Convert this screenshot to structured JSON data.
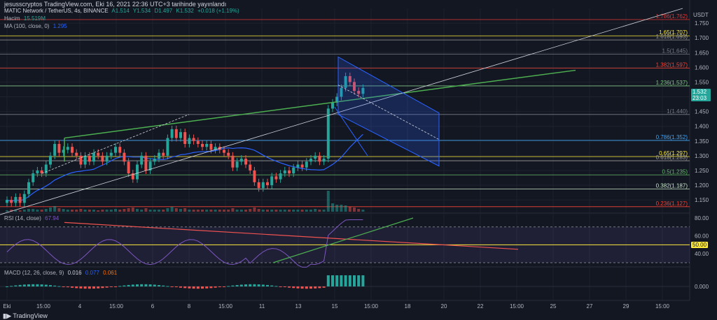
{
  "header": {
    "text": "jesusscryptos TradingView.com, Eki 16, 2021 22:36 UTC+3 tarihinde yayınlandı"
  },
  "symbol_legend": {
    "name": "MATIC Network / TetherUS, 4s, BINANCE",
    "open": "A1.514",
    "high": "Y1.534",
    "low": "D1.497",
    "close": "K1.532",
    "change": "+0.018 (+1.19%)"
  },
  "volume_legend": {
    "label": "Hacim",
    "value": "15.519M"
  },
  "ma_legend": {
    "label": "MA (100, close, 0)",
    "value": "1.295"
  },
  "rsi_legend": {
    "label": "RSI (14, close)",
    "value": "67.94"
  },
  "macd_legend": {
    "label": "MACD (12, 26, close, 9)",
    "v1": "0.016",
    "v2": "0.077",
    "v3": "0.061"
  },
  "currency": "USDT",
  "price_axis": [
    "1.750",
    "1.700",
    "1.650",
    "1.600",
    "1.550",
    "1.500",
    "1.450",
    "1.400",
    "1.350",
    "1.300",
    "1.250",
    "1.200",
    "1.150"
  ],
  "current_price": {
    "value": "1.532",
    "countdown": "23:03"
  },
  "fib_levels": [
    {
      "label": "1.786(1.762)",
      "price": 1.762,
      "color": "#e53935"
    },
    {
      "label": "1.65(1.707)",
      "price": 1.707,
      "color": "#ffeb3b"
    },
    {
      "label": "1.618(1.693)",
      "price": 1.693,
      "color": "#9e9e9e"
    },
    {
      "label": "1.5(1.645)",
      "price": 1.645,
      "color": "#787b86"
    },
    {
      "label": "1.382(1.597)",
      "price": 1.597,
      "color": "#f44336"
    },
    {
      "label": "1.236(1.537)",
      "price": 1.537,
      "color": "#81c784"
    },
    {
      "label": "1(1.440)",
      "price": 1.44,
      "color": "#787b86"
    },
    {
      "label": "0.786(1.352)",
      "price": 1.352,
      "color": "#42a5f5"
    },
    {
      "label": "0.65(1.297)",
      "price": 1.297,
      "color": "#ffeb3b"
    },
    {
      "label": "0.618(1.283)",
      "price": 1.283,
      "color": "#9e9e9e"
    },
    {
      "label": "0.5(1.235)",
      "price": 1.235,
      "color": "#66bb6a"
    },
    {
      "label": "0.382(1.187)",
      "price": 1.187,
      "color": "#c8e6c9"
    },
    {
      "label": "0.236(1.127)",
      "price": 1.127,
      "color": "#f44336"
    }
  ],
  "rsi_axis": [
    "80.00",
    "60.00",
    "40.00"
  ],
  "rsi_level_tag": "50.00",
  "macd_axis": [
    "0.000"
  ],
  "time_axis": [
    "Eki",
    "15:00",
    "4",
    "15:00",
    "6",
    "8",
    "15:00",
    "11",
    "13",
    "15",
    "15:00",
    "18",
    "20",
    "22",
    "15:00",
    "25",
    "27",
    "29",
    "15:00"
  ],
  "footer": {
    "brand": "TradingView"
  },
  "colors": {
    "up": "#26a69a",
    "down": "#ef5350",
    "bg": "#131722",
    "grid": "#1e222d",
    "ma": "#2962ff",
    "trend": "#4caf50",
    "channel": "#2962ff",
    "rsi": "#7e57c2"
  },
  "chart_data": {
    "type": "candlestick",
    "symbol": "MATIC Network / TetherUS",
    "timeframe": "4s",
    "ylim": [
      1.11,
      1.8
    ],
    "candles_close": [
      1.15,
      1.14,
      1.16,
      1.14,
      1.17,
      1.21,
      1.24,
      1.25,
      1.24,
      1.27,
      1.3,
      1.34,
      1.31,
      1.32,
      1.33,
      1.31,
      1.3,
      1.27,
      1.3,
      1.28,
      1.31,
      1.3,
      1.28,
      1.3,
      1.31,
      1.33,
      1.31,
      1.28,
      1.24,
      1.22,
      1.27,
      1.3,
      1.25,
      1.28,
      1.29,
      1.31,
      1.3,
      1.36,
      1.39,
      1.36,
      1.38,
      1.34,
      1.36,
      1.35,
      1.34,
      1.33,
      1.34,
      1.32,
      1.33,
      1.32,
      1.31,
      1.3,
      1.26,
      1.28,
      1.29,
      1.27,
      1.25,
      1.21,
      1.19,
      1.21,
      1.2,
      1.23,
      1.22,
      1.24,
      1.25,
      1.24,
      1.26,
      1.27,
      1.26,
      1.28,
      1.29,
      1.3,
      1.28,
      1.29,
      1.46,
      1.48,
      1.5,
      1.53,
      1.57,
      1.55,
      1.52,
      1.51,
      1.53
    ],
    "volume_relative": [
      0.2,
      0.3,
      0.2,
      0.2,
      0.3,
      0.4,
      0.4,
      0.3,
      0.3,
      0.4,
      0.6,
      0.8,
      0.5,
      0.4,
      0.3,
      0.3,
      0.3,
      0.4,
      0.3,
      0.3,
      0.3,
      0.2,
      0.3,
      0.3,
      0.3,
      0.4,
      0.3,
      0.4,
      0.5,
      0.6,
      0.4,
      0.3,
      0.5,
      0.3,
      0.3,
      0.3,
      0.3,
      0.5,
      0.7,
      0.5,
      0.4,
      0.5,
      0.3,
      0.3,
      0.3,
      0.3,
      0.3,
      0.3,
      0.3,
      0.3,
      0.3,
      0.3,
      0.5,
      0.3,
      0.3,
      0.3,
      0.4,
      0.6,
      0.4,
      0.3,
      0.3,
      0.3,
      0.3,
      0.3,
      0.3,
      0.3,
      0.3,
      0.3,
      0.3,
      0.3,
      0.3,
      0.4,
      0.3,
      0.3,
      3.0,
      1.2,
      1.0,
      1.0,
      0.9,
      0.7,
      0.6,
      0.4,
      0.3
    ]
  }
}
